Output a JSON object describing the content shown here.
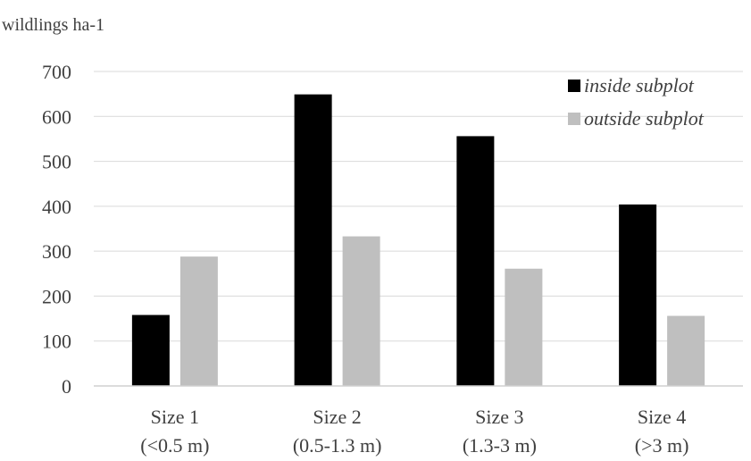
{
  "chart_data": {
    "type": "bar",
    "title": "",
    "xlabel": "",
    "ylabel": "wildlings ha-1",
    "ylim": [
      0,
      700
    ],
    "yticks": [
      0,
      100,
      200,
      300,
      400,
      500,
      600,
      700
    ],
    "grid": true,
    "legend_position": "top-right",
    "categories": [
      [
        "Size 1",
        "(<0.5 m)"
      ],
      [
        "Size 2",
        "(0.5-1.3 m)"
      ],
      [
        "Size 3",
        "(1.3-3 m)"
      ],
      [
        "Size 4",
        "(>3 m)"
      ]
    ],
    "series": [
      {
        "name": "inside subplot",
        "color": "#000000",
        "values": [
          158,
          649,
          556,
          404
        ]
      },
      {
        "name": "outside subplot",
        "color": "#bfbfbf",
        "values": [
          288,
          333,
          261,
          156
        ]
      }
    ]
  }
}
